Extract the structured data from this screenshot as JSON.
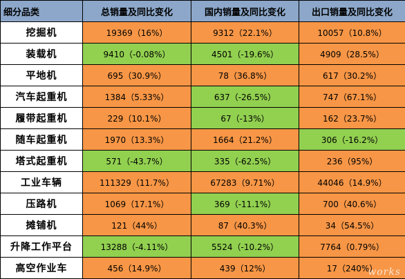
{
  "table": {
    "headers": [
      "细分品类",
      "总销量及同比变化",
      "国内销量及同比变化",
      "出口销量及同比变化"
    ],
    "colors": {
      "increase": "#F79646",
      "decrease": "#92D050",
      "header": "#8CA7C9"
    },
    "rows": [
      {
        "category": "挖掘机",
        "total": "19369（16%）",
        "total_trend": "up",
        "domestic": "9312（22.1%）",
        "domestic_trend": "up",
        "export": "10057（10.8%）",
        "export_trend": "up"
      },
      {
        "category": "装载机",
        "total": "9410（-0.08%）",
        "total_trend": "down",
        "domestic": "4501（-19.6%）",
        "domestic_trend": "down",
        "export": "4909（28.5%）",
        "export_trend": "up"
      },
      {
        "category": "平地机",
        "total": "695（30.9%）",
        "total_trend": "up",
        "domestic": "78（36.8%）",
        "domestic_trend": "up",
        "export": "617（30.2%）",
        "export_trend": "up"
      },
      {
        "category": "汽车起重机",
        "total": "1384（5.33%）",
        "total_trend": "up",
        "domestic": "637（-26.5%）",
        "domestic_trend": "down",
        "export": "747（67.1%）",
        "export_trend": "up"
      },
      {
        "category": "履带起重机",
        "total": "229（10.1%）",
        "total_trend": "up",
        "domestic": "67（-13%）",
        "domestic_trend": "down",
        "export": "162（23.7%）",
        "export_trend": "up"
      },
      {
        "category": "随车起重机",
        "total": "1970（13.3%）",
        "total_trend": "up",
        "domestic": "1664（21.2%）",
        "domestic_trend": "up",
        "export": "306（-16.2%）",
        "export_trend": "down"
      },
      {
        "category": "塔式起重机",
        "total": "571（-43.7%）",
        "total_trend": "down",
        "domestic": "335（-62.5%）",
        "domestic_trend": "down",
        "export": "236（95%）",
        "export_trend": "up"
      },
      {
        "category": "工业车辆",
        "total": "111329（11.7%）",
        "total_trend": "up",
        "domestic": "67283（9.71%）",
        "domestic_trend": "up",
        "export": "44046（14.9%）",
        "export_trend": "up"
      },
      {
        "category": "压路机",
        "total": "1069（17.1%）",
        "total_trend": "up",
        "domestic": "369（-11.1%）",
        "domestic_trend": "down",
        "export": "700（40.6%）",
        "export_trend": "up"
      },
      {
        "category": "摊铺机",
        "total": "121（44%）",
        "total_trend": "up",
        "domestic": "87（40.3%）",
        "domestic_trend": "up",
        "export": "34（54.5%）",
        "export_trend": "up"
      },
      {
        "category": "升降工作平台",
        "total": "13288（-4.11%）",
        "total_trend": "down",
        "domestic": "5524（-10.2%）",
        "domestic_trend": "down",
        "export": "7764（0.79%）",
        "export_trend": "up"
      },
      {
        "category": "高空作业车",
        "total": "456（14.9%）",
        "total_trend": "up",
        "domestic": "439（12%）",
        "domestic_trend": "up",
        "export": "17（240%）",
        "export_trend": "up"
      }
    ]
  },
  "watermark": "works"
}
